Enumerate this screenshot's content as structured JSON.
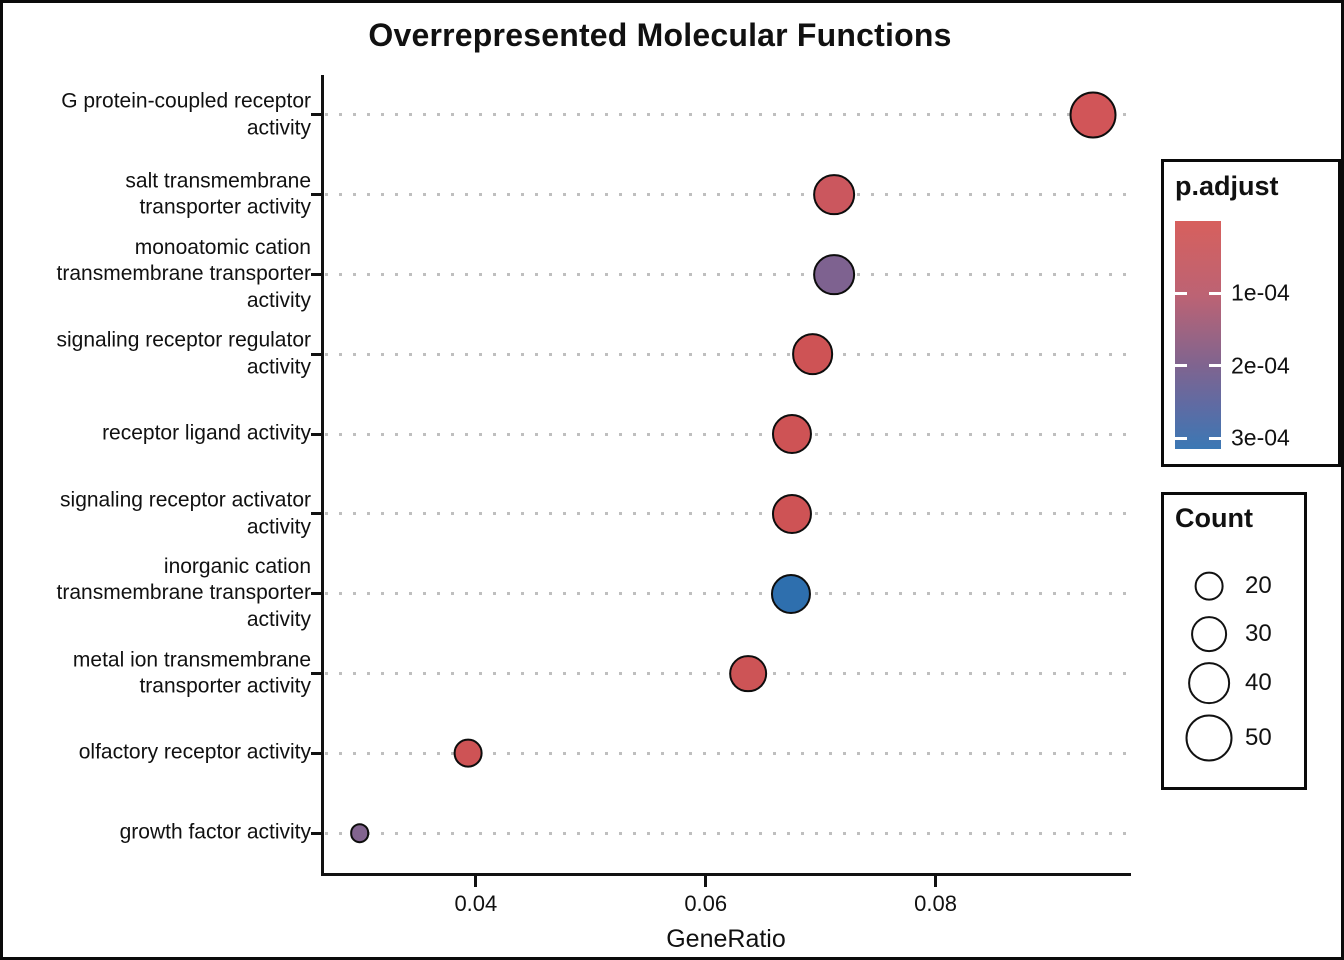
{
  "figure": {
    "title": "Overrepresented Molecular Functions"
  },
  "chart_data": {
    "type": "scatter",
    "subtype": "enrichment-dotplot",
    "title": "Overrepresented Molecular Functions",
    "xlabel": "GeneRatio",
    "ylabel": "",
    "grid": "dotted-horizontal",
    "xlim": [
      0.0267,
      0.097
    ],
    "x_ticks": [
      {
        "value": 0.04,
        "label": "0.04"
      },
      {
        "value": 0.06,
        "label": "0.06"
      },
      {
        "value": 0.08,
        "label": "0.08"
      }
    ],
    "categories": [
      "G protein-coupled receptor\nactivity",
      "salt transmembrane\ntransporter activity",
      "monoatomic cation\ntransmembrane transporter\nactivity",
      "signaling receptor regulator\nactivity",
      "receptor ligand activity",
      "signaling receptor activator\nactivity",
      "inorganic cation\ntransmembrane transporter\nactivity",
      "metal ion transmembrane\ntransporter activity",
      "olfactory receptor activity",
      "growth factor activity"
    ],
    "points": [
      {
        "row": 0,
        "category": "G protein-coupled receptor activity",
        "gene_ratio": 0.0937,
        "count": 50,
        "p_adjust": 1e-08,
        "color": "#D15558"
      },
      {
        "row": 1,
        "category": "salt transmembrane transporter activity",
        "gene_ratio": 0.0712,
        "count": 40,
        "p_adjust": 2.5e-05,
        "color": "#CB575E"
      },
      {
        "row": 2,
        "category": "monoatomic cation transmembrane transporter activity",
        "gene_ratio": 0.0712,
        "count": 40,
        "p_adjust": 0.00019,
        "color": "#7E6290"
      },
      {
        "row": 3,
        "category": "signaling receptor regulator activity",
        "gene_ratio": 0.0693,
        "count": 40,
        "p_adjust": 5e-06,
        "color": "#CE5355"
      },
      {
        "row": 4,
        "category": "receptor ligand activity",
        "gene_ratio": 0.0675,
        "count": 37,
        "p_adjust": 5e-06,
        "color": "#CE5355"
      },
      {
        "row": 5,
        "category": "signaling receptor activator activity",
        "gene_ratio": 0.0675,
        "count": 37,
        "p_adjust": 5e-06,
        "color": "#CE5355"
      },
      {
        "row": 6,
        "category": "inorganic cation transmembrane transporter activity",
        "gene_ratio": 0.0674,
        "count": 37,
        "p_adjust": 0.0003,
        "color": "#2E6FAE"
      },
      {
        "row": 7,
        "category": "metal ion transmembrane transporter activity",
        "gene_ratio": 0.0637,
        "count": 33,
        "p_adjust": 2e-05,
        "color": "#CD5456"
      },
      {
        "row": 8,
        "category": "olfactory receptor activity",
        "gene_ratio": 0.0393,
        "count": 20,
        "p_adjust": 4e-05,
        "color": "#CE5355"
      },
      {
        "row": 9,
        "category": "growth factor activity",
        "gene_ratio": 0.0299,
        "count": 10,
        "p_adjust": 0.00018,
        "color": "#82648F"
      }
    ],
    "color_legend": {
      "title": "p.adjust",
      "min": 0,
      "max": 0.000315,
      "gradient": [
        {
          "color": "#D7605D",
          "pos": "0%"
        },
        {
          "color": "#BC6374",
          "pos": "33%"
        },
        {
          "color": "#80648F",
          "pos": "63%"
        },
        {
          "color": "#5F6BA3",
          "pos": "81%"
        },
        {
          "color": "#3B78B4",
          "pos": "100%"
        }
      ],
      "ticks": [
        {
          "value": 0.0001,
          "label": "1e-04"
        },
        {
          "value": 0.0002,
          "label": "2e-04"
        },
        {
          "value": 0.0003,
          "label": "3e-04"
        }
      ],
      "legend_position": "right"
    },
    "size_legend": {
      "title": "Count",
      "items": [
        20,
        30,
        40,
        50
      ],
      "legend_position": "right"
    }
  }
}
